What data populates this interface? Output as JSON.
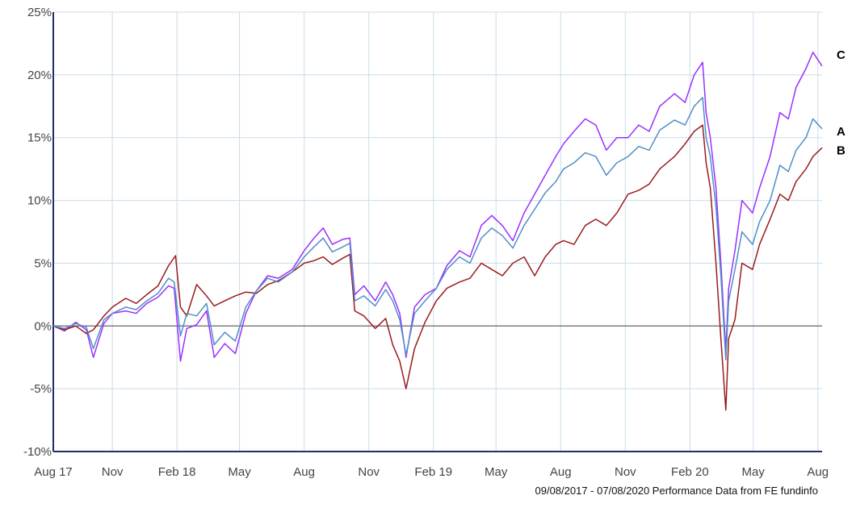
{
  "chart_data": {
    "type": "line",
    "x_axis": {
      "type": "date",
      "range": [
        "2017-08-09",
        "2020-08-07"
      ],
      "tick_labels": [
        {
          "label": "Aug 17",
          "date": "2017-08-09"
        },
        {
          "label": "Nov",
          "date": "2017-11-01"
        },
        {
          "label": "Feb 18",
          "date": "2018-02-01"
        },
        {
          "label": "May",
          "date": "2018-05-01"
        },
        {
          "label": "Aug",
          "date": "2018-08-01"
        },
        {
          "label": "Nov",
          "date": "2018-11-01"
        },
        {
          "label": "Feb 19",
          "date": "2019-02-01"
        },
        {
          "label": "May",
          "date": "2019-05-01"
        },
        {
          "label": "Aug",
          "date": "2019-08-01"
        },
        {
          "label": "Nov",
          "date": "2019-11-01"
        },
        {
          "label": "Feb 20",
          "date": "2020-02-01"
        },
        {
          "label": "May",
          "date": "2020-05-01"
        },
        {
          "label": "Aug",
          "date": "2020-08-01"
        }
      ]
    },
    "y_axis": {
      "unit": "%",
      "range": [
        -10,
        25
      ],
      "ticks": [
        -10,
        -5,
        0,
        5,
        10,
        15,
        20,
        25
      ],
      "tick_labels": [
        "-10%",
        "-5%",
        "0%",
        "5%",
        "10%",
        "15%",
        "20%",
        "25%"
      ]
    },
    "grid": true,
    "zero_line": true,
    "caption": "09/08/2017 - 07/08/2020 Performance Data from FE fundinfo",
    "series": [
      {
        "name": "A",
        "color": "#4f8fc6",
        "points": [
          [
            "2017-08-09",
            0.0
          ],
          [
            "2017-08-25",
            -0.2
          ],
          [
            "2017-09-10",
            0.2
          ],
          [
            "2017-09-25",
            -0.1
          ],
          [
            "2017-10-05",
            -1.8
          ],
          [
            "2017-10-20",
            0.5
          ],
          [
            "2017-11-01",
            1.0
          ],
          [
            "2017-11-20",
            1.5
          ],
          [
            "2017-12-05",
            1.3
          ],
          [
            "2017-12-20",
            2.0
          ],
          [
            "2018-01-05",
            2.6
          ],
          [
            "2018-01-20",
            3.8
          ],
          [
            "2018-01-28",
            3.5
          ],
          [
            "2018-02-06",
            -0.8
          ],
          [
            "2018-02-15",
            1.0
          ],
          [
            "2018-03-01",
            0.8
          ],
          [
            "2018-03-15",
            1.8
          ],
          [
            "2018-03-26",
            -1.5
          ],
          [
            "2018-04-10",
            -0.5
          ],
          [
            "2018-04-25",
            -1.2
          ],
          [
            "2018-05-10",
            1.5
          ],
          [
            "2018-05-25",
            2.8
          ],
          [
            "2018-06-10",
            3.8
          ],
          [
            "2018-06-25",
            3.5
          ],
          [
            "2018-07-15",
            4.3
          ],
          [
            "2018-08-01",
            5.5
          ],
          [
            "2018-08-15",
            6.3
          ],
          [
            "2018-08-28",
            7.0
          ],
          [
            "2018-09-10",
            5.9
          ],
          [
            "2018-09-25",
            6.3
          ],
          [
            "2018-10-05",
            6.6
          ],
          [
            "2018-10-12",
            2.0
          ],
          [
            "2018-10-25",
            2.4
          ],
          [
            "2018-11-10",
            1.6
          ],
          [
            "2018-11-25",
            2.9
          ],
          [
            "2018-12-05",
            2.0
          ],
          [
            "2018-12-15",
            0.5
          ],
          [
            "2018-12-24",
            -2.3
          ],
          [
            "2019-01-05",
            1.0
          ],
          [
            "2019-01-20",
            2.0
          ],
          [
            "2019-02-05",
            3.0
          ],
          [
            "2019-02-20",
            4.5
          ],
          [
            "2019-03-10",
            5.5
          ],
          [
            "2019-03-25",
            5.0
          ],
          [
            "2019-04-10",
            7.0
          ],
          [
            "2019-04-25",
            7.8
          ],
          [
            "2019-05-10",
            7.2
          ],
          [
            "2019-05-25",
            6.2
          ],
          [
            "2019-06-10",
            8.0
          ],
          [
            "2019-06-25",
            9.3
          ],
          [
            "2019-07-10",
            10.6
          ],
          [
            "2019-07-25",
            11.5
          ],
          [
            "2019-08-05",
            12.5
          ],
          [
            "2019-08-20",
            13.0
          ],
          [
            "2019-09-05",
            13.8
          ],
          [
            "2019-09-20",
            13.5
          ],
          [
            "2019-10-05",
            12.0
          ],
          [
            "2019-10-20",
            13.0
          ],
          [
            "2019-11-05",
            13.5
          ],
          [
            "2019-11-20",
            14.3
          ],
          [
            "2019-12-05",
            14.0
          ],
          [
            "2019-12-20",
            15.6
          ],
          [
            "2020-01-10",
            16.4
          ],
          [
            "2020-01-25",
            16.0
          ],
          [
            "2020-02-07",
            17.5
          ],
          [
            "2020-02-19",
            18.2
          ],
          [
            "2020-02-24",
            15.0
          ],
          [
            "2020-03-01",
            13.5
          ],
          [
            "2020-03-09",
            9.5
          ],
          [
            "2020-03-16",
            4.0
          ],
          [
            "2020-03-23",
            -2.7
          ],
          [
            "2020-03-27",
            2.0
          ],
          [
            "2020-04-05",
            4.5
          ],
          [
            "2020-04-15",
            7.5
          ],
          [
            "2020-04-30",
            6.5
          ],
          [
            "2020-05-10",
            8.3
          ],
          [
            "2020-05-25",
            10.0
          ],
          [
            "2020-06-08",
            12.8
          ],
          [
            "2020-06-20",
            12.3
          ],
          [
            "2020-07-01",
            14.0
          ],
          [
            "2020-07-15",
            15.0
          ],
          [
            "2020-07-25",
            16.5
          ],
          [
            "2020-08-07",
            15.7
          ]
        ]
      },
      {
        "name": "B",
        "color": "#9b1c1c",
        "points": [
          [
            "2017-08-09",
            0.0
          ],
          [
            "2017-08-25",
            -0.3
          ],
          [
            "2017-09-10",
            0.0
          ],
          [
            "2017-09-25",
            -0.6
          ],
          [
            "2017-10-05",
            -0.3
          ],
          [
            "2017-10-20",
            0.8
          ],
          [
            "2017-11-01",
            1.5
          ],
          [
            "2017-11-20",
            2.2
          ],
          [
            "2017-12-05",
            1.8
          ],
          [
            "2017-12-20",
            2.5
          ],
          [
            "2018-01-05",
            3.2
          ],
          [
            "2018-01-20",
            4.8
          ],
          [
            "2018-01-30",
            5.6
          ],
          [
            "2018-02-06",
            1.5
          ],
          [
            "2018-02-15",
            0.8
          ],
          [
            "2018-03-01",
            3.3
          ],
          [
            "2018-03-15",
            2.4
          ],
          [
            "2018-03-26",
            1.6
          ],
          [
            "2018-04-10",
            2.0
          ],
          [
            "2018-04-25",
            2.4
          ],
          [
            "2018-05-10",
            2.7
          ],
          [
            "2018-05-25",
            2.6
          ],
          [
            "2018-06-10",
            3.3
          ],
          [
            "2018-06-25",
            3.6
          ],
          [
            "2018-07-15",
            4.3
          ],
          [
            "2018-08-01",
            5.0
          ],
          [
            "2018-08-15",
            5.2
          ],
          [
            "2018-08-28",
            5.5
          ],
          [
            "2018-09-10",
            4.9
          ],
          [
            "2018-09-25",
            5.4
          ],
          [
            "2018-10-05",
            5.7
          ],
          [
            "2018-10-12",
            1.2
          ],
          [
            "2018-10-25",
            0.8
          ],
          [
            "2018-11-10",
            -0.2
          ],
          [
            "2018-11-25",
            0.6
          ],
          [
            "2018-12-05",
            -1.5
          ],
          [
            "2018-12-15",
            -2.8
          ],
          [
            "2018-12-24",
            -5.0
          ],
          [
            "2019-01-05",
            -1.8
          ],
          [
            "2019-01-20",
            0.3
          ],
          [
            "2019-02-05",
            2.0
          ],
          [
            "2019-02-20",
            3.0
          ],
          [
            "2019-03-10",
            3.5
          ],
          [
            "2019-03-25",
            3.8
          ],
          [
            "2019-04-10",
            5.0
          ],
          [
            "2019-04-25",
            4.5
          ],
          [
            "2019-05-10",
            4.0
          ],
          [
            "2019-05-25",
            5.0
          ],
          [
            "2019-06-10",
            5.5
          ],
          [
            "2019-06-25",
            4.0
          ],
          [
            "2019-07-10",
            5.5
          ],
          [
            "2019-07-25",
            6.5
          ],
          [
            "2019-08-05",
            6.8
          ],
          [
            "2019-08-20",
            6.5
          ],
          [
            "2019-09-05",
            8.0
          ],
          [
            "2019-09-20",
            8.5
          ],
          [
            "2019-10-05",
            8.0
          ],
          [
            "2019-10-20",
            9.0
          ],
          [
            "2019-11-05",
            10.5
          ],
          [
            "2019-11-20",
            10.8
          ],
          [
            "2019-12-05",
            11.3
          ],
          [
            "2019-12-20",
            12.5
          ],
          [
            "2020-01-10",
            13.5
          ],
          [
            "2020-01-25",
            14.5
          ],
          [
            "2020-02-07",
            15.5
          ],
          [
            "2020-02-19",
            16.0
          ],
          [
            "2020-02-24",
            13.0
          ],
          [
            "2020-03-01",
            11.0
          ],
          [
            "2020-03-09",
            5.0
          ],
          [
            "2020-03-16",
            -1.0
          ],
          [
            "2020-03-23",
            -6.7
          ],
          [
            "2020-03-27",
            -1.0
          ],
          [
            "2020-04-05",
            0.5
          ],
          [
            "2020-04-15",
            5.0
          ],
          [
            "2020-04-30",
            4.5
          ],
          [
            "2020-05-10",
            6.5
          ],
          [
            "2020-05-25",
            8.5
          ],
          [
            "2020-06-08",
            10.5
          ],
          [
            "2020-06-20",
            10.0
          ],
          [
            "2020-07-01",
            11.5
          ],
          [
            "2020-07-15",
            12.5
          ],
          [
            "2020-07-25",
            13.5
          ],
          [
            "2020-08-07",
            14.2
          ]
        ]
      },
      {
        "name": "C",
        "color": "#9b30ff",
        "points": [
          [
            "2017-08-09",
            0.0
          ],
          [
            "2017-08-25",
            -0.4
          ],
          [
            "2017-09-10",
            0.3
          ],
          [
            "2017-09-25",
            -0.3
          ],
          [
            "2017-10-05",
            -2.5
          ],
          [
            "2017-10-20",
            0.2
          ],
          [
            "2017-11-01",
            1.0
          ],
          [
            "2017-11-20",
            1.2
          ],
          [
            "2017-12-05",
            1.0
          ],
          [
            "2017-12-20",
            1.8
          ],
          [
            "2018-01-05",
            2.3
          ],
          [
            "2018-01-20",
            3.2
          ],
          [
            "2018-01-28",
            3.0
          ],
          [
            "2018-02-06",
            -2.8
          ],
          [
            "2018-02-15",
            -0.2
          ],
          [
            "2018-03-01",
            0.1
          ],
          [
            "2018-03-15",
            1.2
          ],
          [
            "2018-03-26",
            -2.5
          ],
          [
            "2018-04-10",
            -1.4
          ],
          [
            "2018-04-25",
            -2.2
          ],
          [
            "2018-05-10",
            1.0
          ],
          [
            "2018-05-25",
            2.8
          ],
          [
            "2018-06-10",
            4.0
          ],
          [
            "2018-06-25",
            3.8
          ],
          [
            "2018-07-15",
            4.5
          ],
          [
            "2018-08-01",
            6.0
          ],
          [
            "2018-08-15",
            7.0
          ],
          [
            "2018-08-28",
            7.8
          ],
          [
            "2018-09-10",
            6.5
          ],
          [
            "2018-09-25",
            6.9
          ],
          [
            "2018-10-05",
            7.0
          ],
          [
            "2018-10-12",
            2.5
          ],
          [
            "2018-10-25",
            3.2
          ],
          [
            "2018-11-10",
            2.0
          ],
          [
            "2018-11-25",
            3.5
          ],
          [
            "2018-12-05",
            2.5
          ],
          [
            "2018-12-15",
            1.0
          ],
          [
            "2018-12-24",
            -2.5
          ],
          [
            "2019-01-05",
            1.5
          ],
          [
            "2019-01-20",
            2.5
          ],
          [
            "2019-02-05",
            3.0
          ],
          [
            "2019-02-20",
            4.8
          ],
          [
            "2019-03-10",
            6.0
          ],
          [
            "2019-03-25",
            5.5
          ],
          [
            "2019-04-10",
            8.0
          ],
          [
            "2019-04-25",
            8.8
          ],
          [
            "2019-05-10",
            8.0
          ],
          [
            "2019-05-25",
            6.8
          ],
          [
            "2019-06-10",
            9.0
          ],
          [
            "2019-06-25",
            10.5
          ],
          [
            "2019-07-10",
            12.0
          ],
          [
            "2019-07-25",
            13.5
          ],
          [
            "2019-08-05",
            14.5
          ],
          [
            "2019-08-20",
            15.5
          ],
          [
            "2019-09-05",
            16.5
          ],
          [
            "2019-09-20",
            16.0
          ],
          [
            "2019-10-05",
            14.0
          ],
          [
            "2019-10-20",
            15.0
          ],
          [
            "2019-11-05",
            15.0
          ],
          [
            "2019-11-20",
            16.0
          ],
          [
            "2019-12-05",
            15.5
          ],
          [
            "2019-12-20",
            17.5
          ],
          [
            "2020-01-10",
            18.5
          ],
          [
            "2020-01-25",
            17.8
          ],
          [
            "2020-02-07",
            20.0
          ],
          [
            "2020-02-19",
            21.0
          ],
          [
            "2020-02-24",
            17.0
          ],
          [
            "2020-03-01",
            15.0
          ],
          [
            "2020-03-09",
            11.0
          ],
          [
            "2020-03-16",
            5.0
          ],
          [
            "2020-03-23",
            -2.0
          ],
          [
            "2020-03-27",
            3.0
          ],
          [
            "2020-04-05",
            6.0
          ],
          [
            "2020-04-15",
            10.0
          ],
          [
            "2020-04-30",
            9.0
          ],
          [
            "2020-05-10",
            11.0
          ],
          [
            "2020-05-25",
            13.5
          ],
          [
            "2020-06-08",
            17.0
          ],
          [
            "2020-06-20",
            16.5
          ],
          [
            "2020-07-01",
            19.0
          ],
          [
            "2020-07-15",
            20.5
          ],
          [
            "2020-07-25",
            21.8
          ],
          [
            "2020-08-07",
            20.7
          ]
        ]
      }
    ]
  }
}
